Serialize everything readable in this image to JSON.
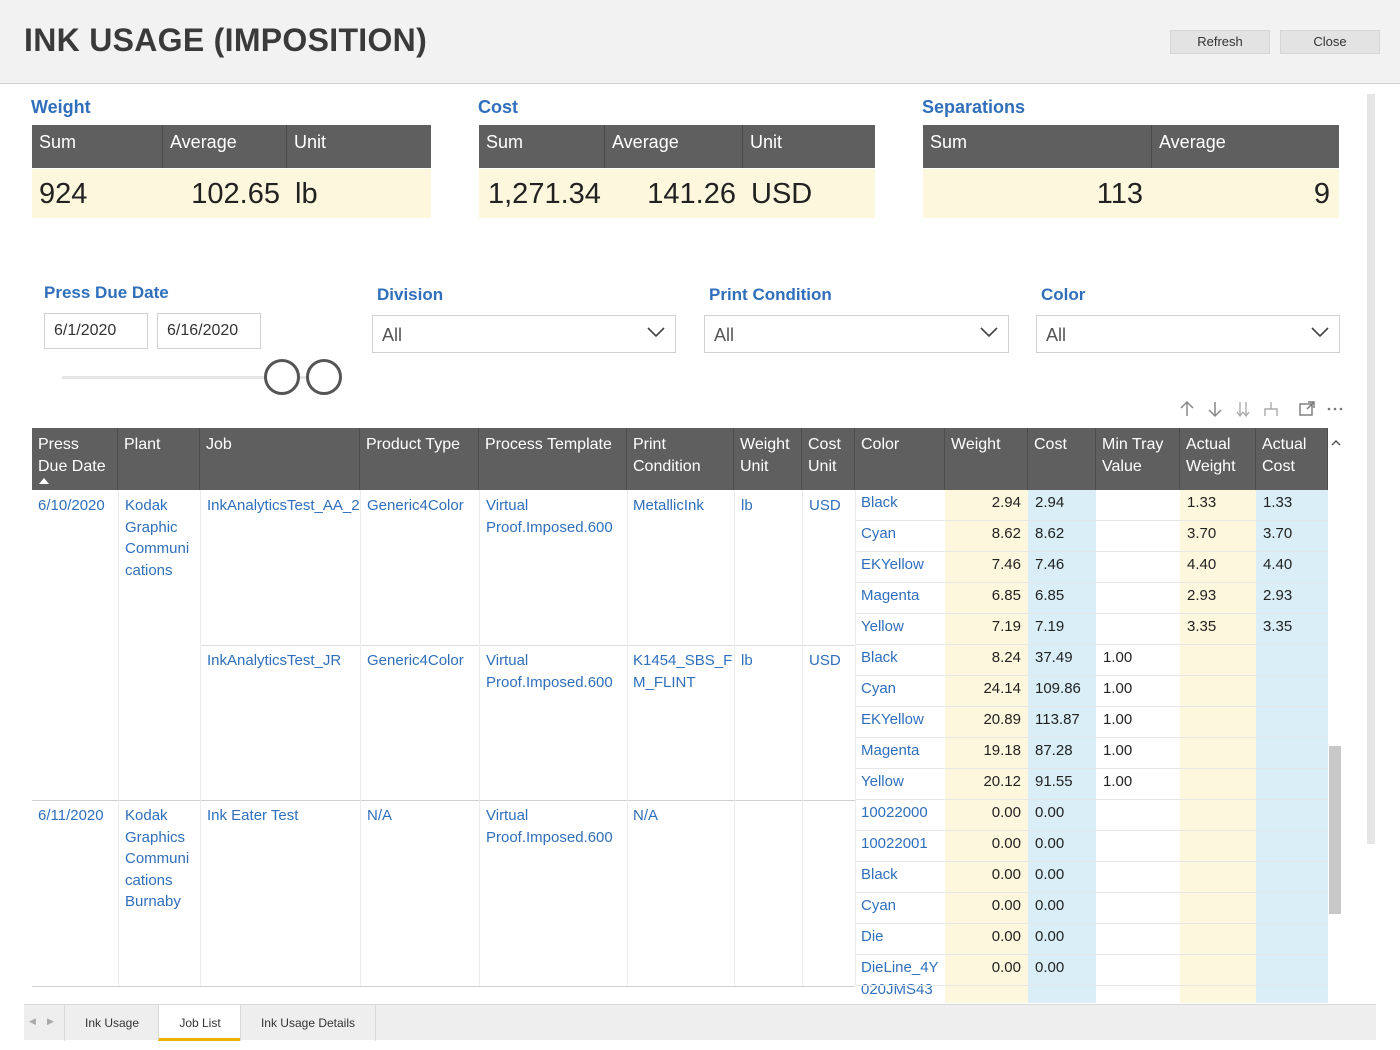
{
  "app": {
    "title": "INK USAGE (IMPOSITION)",
    "refresh_label": "Refresh",
    "close_label": "Close"
  },
  "cards": {
    "weight": {
      "title": "Weight",
      "h1": "Sum",
      "h2": "Average",
      "h3": "Unit",
      "sum": "924",
      "average": "102.65",
      "unit": "lb"
    },
    "cost": {
      "title": "Cost",
      "h1": "Sum",
      "h2": "Average",
      "h3": "Unit",
      "sum": "1,271.34",
      "average": "141.26",
      "unit": "USD"
    },
    "separations": {
      "title": "Separations",
      "h1": "Sum",
      "h2": "Average",
      "sum": "113",
      "average": "9"
    }
  },
  "filters": {
    "press_due_date": {
      "label": "Press Due Date",
      "from": "6/1/2020",
      "to": "6/16/2020"
    },
    "division": {
      "label": "Division",
      "value": "All"
    },
    "print_condition": {
      "label": "Print Condition",
      "value": "All"
    },
    "color": {
      "label": "Color",
      "value": "All"
    }
  },
  "table": {
    "headers": [
      "Press Due Date",
      "Plant",
      "Job",
      "Product Type",
      "Process Template",
      "Print Condition",
      "Weight Unit",
      "Cost Unit",
      "Color",
      "Weight",
      "Cost",
      "Min Tray Value",
      "Actual Weight",
      "Actual Cost"
    ],
    "header_lines": {
      "press_due_date": [
        "Press",
        "Due Date"
      ],
      "print_condition": [
        "Print",
        "Condition"
      ],
      "weight_unit": [
        "Weight",
        "Unit"
      ],
      "cost_unit": [
        "Cost",
        "Unit"
      ],
      "min_tray": [
        "Min Tray",
        "Value"
      ],
      "actual_weight": [
        "Actual",
        "Weight"
      ],
      "actual_cost": [
        "Actual",
        "Cost"
      ]
    },
    "groups": [
      {
        "date": "6/10/2020",
        "plant_lines": [
          "Kodak",
          "Graphic",
          "Communi",
          "cations"
        ],
        "jobs": [
          {
            "job": "InkAnalyticsTest_AA_2",
            "product_type": "Generic4Color",
            "template_lines": [
              "Virtual",
              "Proof.Imposed.600"
            ],
            "condition_lines": [
              "MetallicInk"
            ],
            "weight_unit": "lb",
            "cost_unit": "USD",
            "rows": [
              {
                "color": "Black",
                "weight": "2.94",
                "cost": "2.94",
                "min_tray": "",
                "actual_weight": "1.33",
                "actual_cost": "1.33"
              },
              {
                "color": "Cyan",
                "weight": "8.62",
                "cost": "8.62",
                "min_tray": "",
                "actual_weight": "3.70",
                "actual_cost": "3.70"
              },
              {
                "color": "EKYellow",
                "weight": "7.46",
                "cost": "7.46",
                "min_tray": "",
                "actual_weight": "4.40",
                "actual_cost": "4.40"
              },
              {
                "color": "Magenta",
                "weight": "6.85",
                "cost": "6.85",
                "min_tray": "",
                "actual_weight": "2.93",
                "actual_cost": "2.93"
              },
              {
                "color": "Yellow",
                "weight": "7.19",
                "cost": "7.19",
                "min_tray": "",
                "actual_weight": "3.35",
                "actual_cost": "3.35"
              }
            ]
          },
          {
            "job": "InkAnalyticsTest_JR",
            "product_type": "Generic4Color",
            "template_lines": [
              "Virtual",
              "Proof.Imposed.600"
            ],
            "condition_lines": [
              "K1454_SBS_F",
              "M_FLINT"
            ],
            "weight_unit": "lb",
            "cost_unit": "USD",
            "rows": [
              {
                "color": "Black",
                "weight": "8.24",
                "cost": "37.49",
                "min_tray": "1.00",
                "actual_weight": "",
                "actual_cost": ""
              },
              {
                "color": "Cyan",
                "weight": "24.14",
                "cost": "109.86",
                "min_tray": "1.00",
                "actual_weight": "",
                "actual_cost": ""
              },
              {
                "color": "EKYellow",
                "weight": "20.89",
                "cost": "113.87",
                "min_tray": "1.00",
                "actual_weight": "",
                "actual_cost": ""
              },
              {
                "color": "Magenta",
                "weight": "19.18",
                "cost": "87.28",
                "min_tray": "1.00",
                "actual_weight": "",
                "actual_cost": ""
              },
              {
                "color": "Yellow",
                "weight": "20.12",
                "cost": "91.55",
                "min_tray": "1.00",
                "actual_weight": "",
                "actual_cost": ""
              }
            ]
          }
        ]
      },
      {
        "date": "6/11/2020",
        "plant_lines": [
          "Kodak",
          "Graphics",
          "Communi",
          "cations",
          "Burnaby"
        ],
        "jobs": [
          {
            "job": "Ink Eater Test",
            "product_type": "N/A",
            "template_lines": [
              "Virtual",
              "Proof.Imposed.600"
            ],
            "condition_lines": [
              "N/A"
            ],
            "weight_unit": "",
            "cost_unit": "",
            "rows": [
              {
                "color": "10022000",
                "weight": "0.00",
                "cost": "0.00",
                "min_tray": "",
                "actual_weight": "",
                "actual_cost": ""
              },
              {
                "color": "10022001",
                "weight": "0.00",
                "cost": "0.00",
                "min_tray": "",
                "actual_weight": "",
                "actual_cost": ""
              },
              {
                "color": "Black",
                "weight": "0.00",
                "cost": "0.00",
                "min_tray": "",
                "actual_weight": "",
                "actual_cost": ""
              },
              {
                "color": "Cyan",
                "weight": "0.00",
                "cost": "0.00",
                "min_tray": "",
                "actual_weight": "",
                "actual_cost": ""
              },
              {
                "color": "Die",
                "weight": "0.00",
                "cost": "0.00",
                "min_tray": "",
                "actual_weight": "",
                "actual_cost": ""
              },
              {
                "color": "DieLine_4Y\n020JMS43",
                "weight": "0.00",
                "cost": "0.00",
                "min_tray": "",
                "actual_weight": "",
                "actual_cost": ""
              }
            ]
          }
        ]
      }
    ]
  },
  "tabs": [
    {
      "label": "Ink Usage",
      "active": false
    },
    {
      "label": "Job List",
      "active": true
    },
    {
      "label": "Ink Usage Details",
      "active": false
    }
  ],
  "colors": {
    "accent": "#2f6fbb",
    "header_bg": "#5f5f5f",
    "yellow_cell": "#fdf7dd",
    "blue_cell": "#d9eef7",
    "tab_active": "#e8b400"
  },
  "icons": [
    "sort-ascending-icon",
    "sort-descending-icon",
    "expand-all-down-icon",
    "hierarchy-icon",
    "focus-mode-icon",
    "more-options-icon",
    "chevron-down-icon"
  ]
}
